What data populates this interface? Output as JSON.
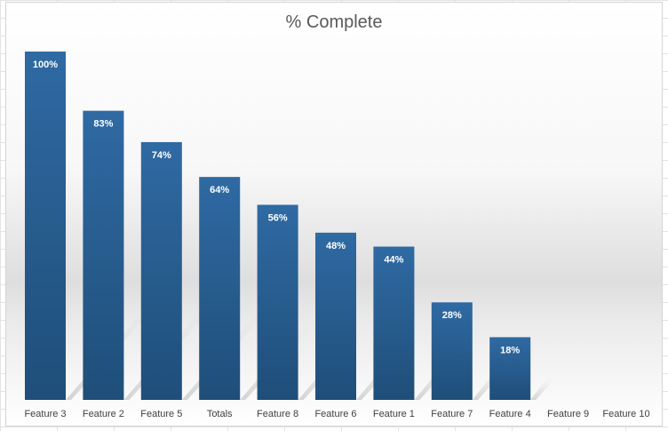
{
  "chart_data": {
    "type": "bar",
    "title": "% Complete",
    "categories": [
      "Feature 3",
      "Feature 2",
      "Feature 5",
      "Totals",
      "Feature 8",
      "Feature 6",
      "Feature 1",
      "Feature 7",
      "Feature 4",
      "Feature 9",
      "Feature 10"
    ],
    "values": [
      100,
      83,
      74,
      64,
      56,
      48,
      44,
      28,
      18,
      0,
      0
    ],
    "data_labels": [
      "100%",
      "83%",
      "74%",
      "64%",
      "56%",
      "48%",
      "44%",
      "28%",
      "18%",
      "",
      ""
    ],
    "ylim": [
      0,
      100
    ],
    "xlabel": "",
    "ylabel": "",
    "grid": false,
    "legend": "none",
    "bar_color": "#1f4e79",
    "bar_color_light": "#2f6aa3",
    "label_color": "#ffffff"
  }
}
